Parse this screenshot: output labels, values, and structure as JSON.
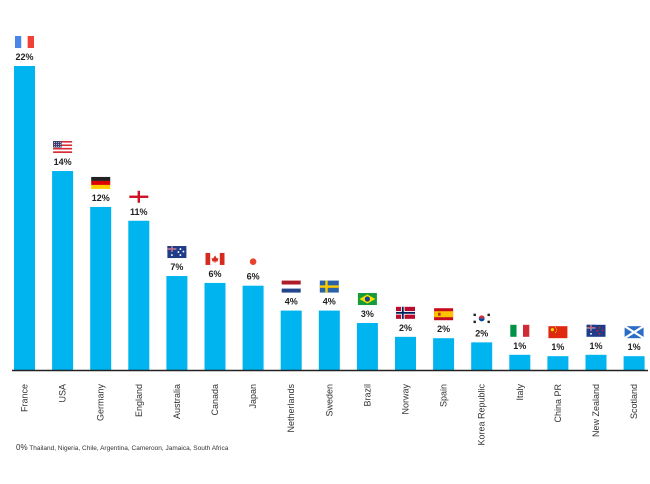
{
  "colors": {
    "bar": "#00b4ef",
    "axis": "#222222"
  },
  "chart_data": {
    "type": "bar",
    "categories": [
      "France",
      "USA",
      "Germany",
      "England",
      "Australia",
      "Canada",
      "Japan",
      "Netherlands",
      "Sweden",
      "Brazil",
      "Norway",
      "Spain",
      "Korea Republic",
      "Italy",
      "China PR",
      "New Zealand",
      "Scotland"
    ],
    "values": [
      22,
      14,
      12,
      11,
      7,
      6,
      6,
      4,
      4,
      3,
      2,
      2,
      2,
      1,
      1,
      1,
      1
    ],
    "raw_values": [
      22,
      14.4,
      11.8,
      10.8,
      6.8,
      6.3,
      6.1,
      4.3,
      4.3,
      3.4,
      2.4,
      2.3,
      2.0,
      1.1,
      1.0,
      1.1,
      1.0
    ],
    "value_labels": [
      "22%",
      "14%",
      "12%",
      "11%",
      "7%",
      "6%",
      "6%",
      "4%",
      "4%",
      "3%",
      "2%",
      "2%",
      "2%",
      "1%",
      "1%",
      "1%",
      "1%"
    ],
    "flags": [
      "flag-france",
      "flag-usa",
      "flag-germany",
      "flag-england",
      "flag-australia",
      "flag-canada",
      "flag-japan",
      "flag-netherlands",
      "flag-sweden",
      "flag-brazil",
      "flag-norway",
      "flag-spain",
      "flag-korea-republic",
      "flag-italy",
      "flag-china",
      "flag-new-zealand",
      "flag-scotland"
    ],
    "ylim": [
      0,
      22
    ],
    "grid": false,
    "title": "",
    "xlabel": "",
    "ylabel": ""
  },
  "footnote": {
    "value": "0%",
    "countries": "Thailand, Nigeria, Chile, Argentina, Cameroon, Jamaica, South Africa"
  }
}
